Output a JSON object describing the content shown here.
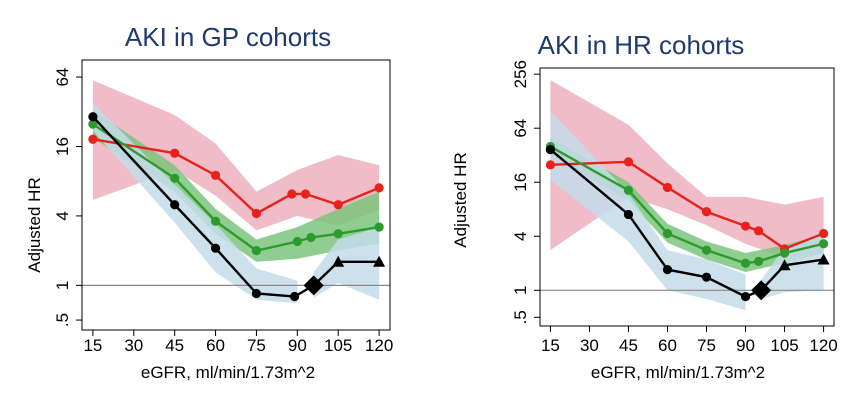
{
  "colors": {
    "red_line": "#e8211c",
    "red_band": "#e8a0b0",
    "green_line": "#2e9a2e",
    "green_band": "#7cc47c",
    "black_line": "#000000",
    "blue_band": "#c4dcea",
    "reference_line": "#888888",
    "title": "#1f3b6b"
  },
  "chart_data": [
    {
      "type": "line",
      "title": "AKI in GP cohorts",
      "xlabel": "eGFR, ml/min/1.73m^2",
      "ylabel": "Adjusted HR",
      "y_scale": "log2",
      "xlim": [
        11,
        124
      ],
      "ylim": [
        0.41,
        90
      ],
      "x_ticks": [
        15,
        30,
        45,
        60,
        75,
        90,
        105,
        120
      ],
      "y_ticks": [
        {
          "value": 0.5,
          "label": ".5"
        },
        {
          "value": 1,
          "label": "1"
        },
        {
          "value": 4,
          "label": "4"
        },
        {
          "value": 16,
          "label": "16"
        },
        {
          "value": 64,
          "label": "64"
        }
      ],
      "reference_line": 1,
      "series": [
        {
          "color_key": "red",
          "marker": "circle",
          "points": [
            [
              15,
              18.5
            ],
            [
              45,
              14
            ],
            [
              60,
              9
            ],
            [
              75,
              4.2
            ],
            [
              88,
              6.2
            ],
            [
              93,
              6.2
            ],
            [
              105,
              5
            ],
            [
              120,
              7
            ]
          ],
          "band_upper": [
            [
              15,
              60
            ],
            [
              45,
              30
            ],
            [
              60,
              17
            ],
            [
              75,
              6.5
            ],
            [
              90,
              10
            ],
            [
              105,
              13.5
            ],
            [
              120,
              11
            ]
          ],
          "band_lower": [
            [
              15,
              5.5
            ],
            [
              45,
              10
            ],
            [
              60,
              6
            ],
            [
              75,
              3
            ],
            [
              90,
              4
            ],
            [
              105,
              3.3
            ],
            [
              120,
              4.5
            ]
          ]
        },
        {
          "color_key": "green",
          "marker": "circle",
          "points": [
            [
              15,
              25
            ],
            [
              45,
              8.5
            ],
            [
              60,
              3.6
            ],
            [
              75,
              2
            ],
            [
              90,
              2.4
            ],
            [
              95,
              2.6
            ],
            [
              105,
              2.8
            ],
            [
              120,
              3.2
            ]
          ],
          "band_upper": [
            [
              15,
              33
            ],
            [
              45,
              11
            ],
            [
              60,
              4.6
            ],
            [
              75,
              2.5
            ],
            [
              90,
              3.2
            ],
            [
              105,
              4.6
            ],
            [
              120,
              6.5
            ]
          ],
          "band_lower": [
            [
              15,
              19
            ],
            [
              45,
              6.5
            ],
            [
              60,
              2.8
            ],
            [
              75,
              1.6
            ],
            [
              90,
              1.7
            ],
            [
              105,
              2.0
            ],
            [
              120,
              2.3
            ]
          ]
        },
        {
          "color_key": "black",
          "marker": "circle",
          "points": [
            [
              15,
              29
            ],
            [
              45,
              5
            ],
            [
              60,
              2.1
            ],
            [
              75,
              0.85
            ],
            [
              89,
              0.8
            ],
            [
              96,
              1
            ]
          ],
          "band_upper": [
            [
              15,
              38
            ],
            [
              45,
              7.5
            ],
            [
              60,
              3.4
            ],
            [
              75,
              1.4
            ],
            [
              90,
              1.1
            ]
          ],
          "band_lower": [
            [
              15,
              22
            ],
            [
              45,
              3.5
            ],
            [
              60,
              1.3
            ],
            [
              75,
              0.75
            ],
            [
              90,
              0.7
            ]
          ]
        },
        {
          "color_key": "black",
          "marker": "triangle",
          "points": [
            [
              96,
              1
            ],
            [
              105,
              1.6
            ],
            [
              120,
              1.6
            ]
          ],
          "band_upper": [
            [
              96,
              1.3
            ],
            [
              105,
              2.5
            ],
            [
              120,
              3.2
            ]
          ],
          "band_lower": [
            [
              96,
              0.78
            ],
            [
              105,
              1.05
            ],
            [
              120,
              0.75
            ]
          ]
        }
      ],
      "diamond": [
        96,
        1
      ]
    },
    {
      "type": "line",
      "title": "AKI in HR cohorts",
      "xlabel": "eGFR, ml/min/1.73m^2",
      "ylabel": "Adjusted HR",
      "y_scale": "log2",
      "xlim": [
        11,
        124
      ],
      "ylim": [
        0.4,
        300
      ],
      "x_ticks": [
        15,
        30,
        45,
        60,
        75,
        90,
        105,
        120
      ],
      "y_ticks": [
        {
          "value": 0.5,
          "label": ".5"
        },
        {
          "value": 1,
          "label": "1"
        },
        {
          "value": 4,
          "label": "4"
        },
        {
          "value": 16,
          "label": "16"
        },
        {
          "value": 64,
          "label": "64"
        },
        {
          "value": 256,
          "label": "256"
        }
      ],
      "reference_line": 1,
      "series": [
        {
          "color_key": "red",
          "marker": "circle",
          "points": [
            [
              15,
              25
            ],
            [
              45,
              27
            ],
            [
              60,
              14
            ],
            [
              75,
              7.5
            ],
            [
              90,
              5.2
            ],
            [
              95,
              4.6
            ],
            [
              105,
              2.9
            ],
            [
              120,
              4.3
            ]
          ],
          "band_upper": [
            [
              15,
              220
            ],
            [
              45,
              70
            ],
            [
              60,
              26
            ],
            [
              75,
              11
            ],
            [
              90,
              11
            ],
            [
              105,
              9
            ],
            [
              120,
              11
            ]
          ],
          "band_lower": [
            [
              15,
              2.8
            ],
            [
              45,
              11
            ],
            [
              60,
              8
            ],
            [
              75,
              5.3
            ],
            [
              90,
              3.3
            ],
            [
              105,
              2.3
            ],
            [
              120,
              2.9
            ]
          ]
        },
        {
          "color_key": "green",
          "marker": "circle",
          "points": [
            [
              15,
              40
            ],
            [
              45,
              13
            ],
            [
              60,
              4.3
            ],
            [
              75,
              2.8
            ],
            [
              90,
              2
            ],
            [
              95,
              2.1
            ],
            [
              105,
              2.6
            ],
            [
              120,
              3.3
            ]
          ],
          "band_upper": [
            [
              15,
              50
            ],
            [
              45,
              16
            ],
            [
              60,
              5.5
            ],
            [
              75,
              3.5
            ],
            [
              90,
              2.6
            ],
            [
              105,
              3.2
            ],
            [
              120,
              4.2
            ]
          ],
          "band_lower": [
            [
              15,
              32
            ],
            [
              45,
              10
            ],
            [
              60,
              3.4
            ],
            [
              75,
              2.2
            ],
            [
              90,
              1.6
            ],
            [
              105,
              2.0
            ],
            [
              120,
              2.6
            ]
          ]
        },
        {
          "color_key": "black",
          "marker": "circle",
          "points": [
            [
              15,
              37
            ],
            [
              45,
              7
            ],
            [
              60,
              1.7
            ],
            [
              75,
              1.4
            ],
            [
              90,
              0.85
            ],
            [
              96,
              1
            ]
          ],
          "band_upper": [
            [
              15,
              100
            ],
            [
              45,
              12
            ],
            [
              60,
              2.8
            ],
            [
              75,
              2.2
            ],
            [
              90,
              1.5
            ]
          ],
          "band_lower": [
            [
              15,
              17
            ],
            [
              45,
              3.5
            ],
            [
              60,
              1.0
            ],
            [
              75,
              0.8
            ],
            [
              90,
              0.6
            ]
          ]
        },
        {
          "color_key": "black",
          "marker": "triangle",
          "points": [
            [
              96,
              1
            ],
            [
              105,
              1.9
            ],
            [
              120,
              2.2
            ]
          ],
          "band_upper": [
            [
              96,
              1.3
            ],
            [
              105,
              3.0
            ],
            [
              120,
              4.5
            ]
          ],
          "band_lower": [
            [
              96,
              0.8
            ],
            [
              105,
              0.95
            ],
            [
              120,
              1.0
            ]
          ]
        }
      ],
      "diamond": [
        96,
        1
      ]
    }
  ]
}
